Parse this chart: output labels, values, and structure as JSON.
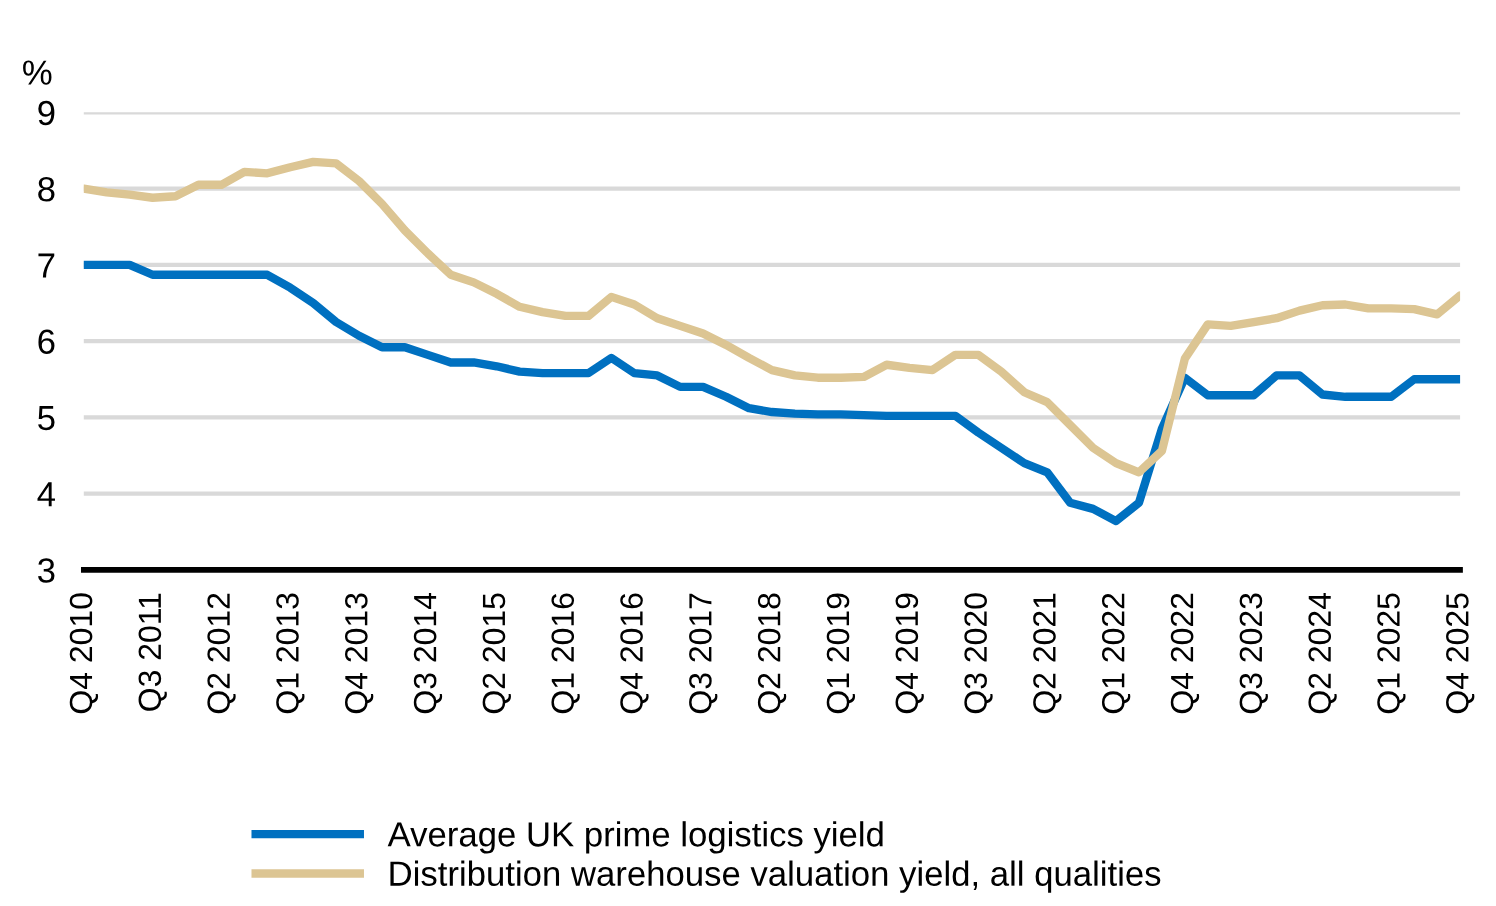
{
  "chart_data": {
    "type": "line",
    "ylabel": "%",
    "categories": [
      "Q4 2010",
      null,
      null,
      "Q3 2011",
      null,
      null,
      "Q2 2012",
      null,
      null,
      "Q1 2013",
      null,
      null,
      "Q4 2013",
      null,
      null,
      "Q3 2014",
      null,
      null,
      "Q2 2015",
      null,
      null,
      "Q1 2016",
      null,
      null,
      "Q4 2016",
      null,
      null,
      "Q3 2017",
      null,
      null,
      "Q2 2018",
      null,
      null,
      "Q1 2019",
      null,
      null,
      "Q4 2019",
      null,
      null,
      "Q3 2020",
      null,
      null,
      "Q2 2021",
      null,
      null,
      "Q1 2022",
      null,
      null,
      "Q4 2022",
      null,
      null,
      "Q3 2023",
      null,
      null,
      "Q2 2024",
      null,
      null,
      "Q1 2025",
      null,
      null,
      "Q4 2025"
    ],
    "series": [
      {
        "name": "Average UK prime logistics yield",
        "color": "#0070c0",
        "values": [
          7.0,
          7.0,
          7.0,
          6.87,
          6.87,
          6.87,
          6.87,
          6.87,
          6.87,
          6.7,
          6.5,
          6.25,
          6.07,
          5.92,
          5.92,
          5.82,
          5.72,
          5.72,
          5.67,
          5.6,
          5.58,
          5.58,
          5.58,
          5.78,
          5.58,
          5.55,
          5.4,
          5.4,
          5.27,
          5.12,
          5.07,
          5.05,
          5.04,
          5.04,
          5.03,
          5.02,
          5.02,
          5.02,
          5.02,
          4.8,
          4.6,
          4.4,
          4.28,
          3.88,
          3.8,
          3.64,
          3.88,
          4.85,
          5.52,
          5.29,
          5.29,
          5.29,
          5.55,
          5.55,
          5.3,
          5.27,
          5.27,
          5.27,
          5.5,
          5.5,
          5.5
        ]
      },
      {
        "name": "Distribution warehouse valuation yield, all qualities",
        "color": "#dcc593",
        "values": [
          8.0,
          7.95,
          7.92,
          7.88,
          7.9,
          8.05,
          8.05,
          8.22,
          8.2,
          8.28,
          8.35,
          8.33,
          8.1,
          7.8,
          7.45,
          7.15,
          6.87,
          6.77,
          6.62,
          6.45,
          6.38,
          6.33,
          6.33,
          6.58,
          6.48,
          6.3,
          6.2,
          6.1,
          5.95,
          5.78,
          5.62,
          5.55,
          5.52,
          5.52,
          5.53,
          5.69,
          5.65,
          5.62,
          5.82,
          5.82,
          5.6,
          5.33,
          5.2,
          4.9,
          4.6,
          4.4,
          4.28,
          4.56,
          5.77,
          6.22,
          6.2,
          6.25,
          6.3,
          6.4,
          6.47,
          6.48,
          6.43,
          6.43,
          6.42,
          6.35,
          6.6
        ]
      }
    ],
    "ylim": [
      3,
      9
    ],
    "yticks": [
      3,
      4,
      5,
      6,
      7,
      8,
      9
    ],
    "grid": "y",
    "legend": "bottom",
    "marker": "none",
    "line_style": "solid"
  }
}
